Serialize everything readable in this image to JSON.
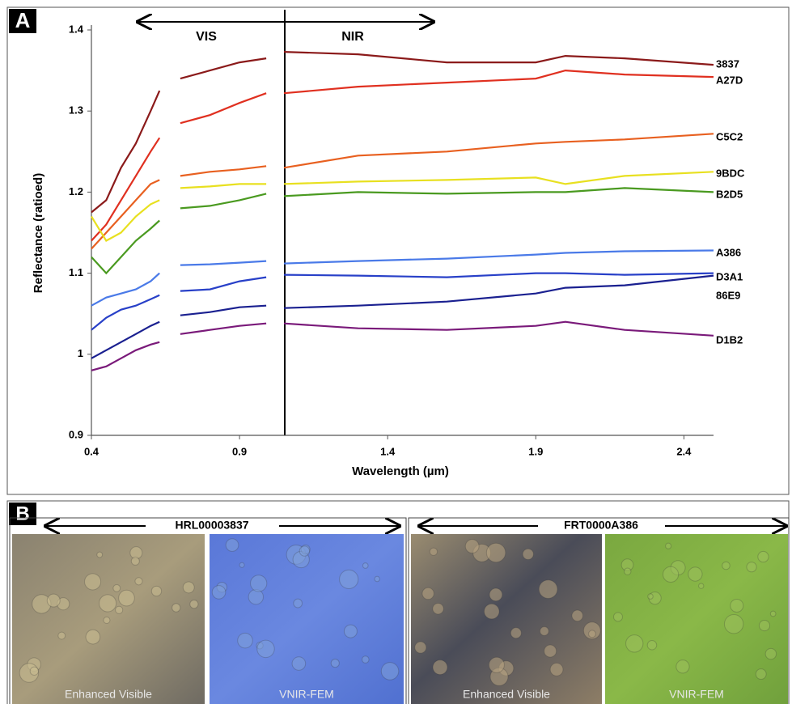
{
  "chart_data": {
    "type": "line",
    "panel_label": "A",
    "x_label": "Wavelength (µm)",
    "y_label": "Reflectance  (ratioed)",
    "annotations": [
      "VIS",
      "NIR"
    ],
    "x": [
      0.4,
      0.45,
      0.5,
      0.55,
      0.6,
      0.63,
      0.67,
      0.7,
      0.8,
      0.9,
      0.99,
      1.02,
      1.05,
      1.3,
      1.6,
      1.9,
      2.0,
      2.2,
      2.5
    ],
    "series": [
      {
        "name": "3837",
        "color": "#8b1a1a",
        "values": [
          1.175,
          1.19,
          1.23,
          1.26,
          1.3,
          1.325,
          null,
          1.34,
          1.35,
          1.36,
          1.365,
          null,
          1.373,
          1.37,
          1.36,
          1.36,
          1.368,
          1.365,
          1.357
        ]
      },
      {
        "name": "A27D",
        "color": "#e03020",
        "values": [
          1.14,
          1.16,
          1.19,
          1.22,
          1.25,
          1.267,
          null,
          1.285,
          1.295,
          1.31,
          1.322,
          null,
          1.322,
          1.33,
          1.335,
          1.34,
          1.35,
          1.345,
          1.342
        ]
      },
      {
        "name": "C5C2",
        "color": "#e86020",
        "values": [
          1.13,
          1.15,
          1.17,
          1.19,
          1.21,
          1.215,
          null,
          1.22,
          1.225,
          1.228,
          1.232,
          null,
          1.23,
          1.245,
          1.25,
          1.26,
          1.262,
          1.265,
          1.272
        ]
      },
      {
        "name": "9BDC",
        "color": "#e8e020",
        "values": [
          1.17,
          1.14,
          1.15,
          1.17,
          1.185,
          1.19,
          null,
          1.205,
          1.207,
          1.21,
          1.21,
          null,
          1.21,
          1.213,
          1.215,
          1.218,
          1.21,
          1.22,
          1.225
        ]
      },
      {
        "name": "B2D5",
        "color": "#4a9a20",
        "values": [
          1.12,
          1.1,
          1.12,
          1.14,
          1.155,
          1.165,
          null,
          1.18,
          1.183,
          1.19,
          1.198,
          null,
          1.195,
          1.2,
          1.198,
          1.2,
          1.2,
          1.205,
          1.2
        ]
      },
      {
        "name": "A386",
        "color": "#4a7ae8",
        "values": [
          1.06,
          1.07,
          1.075,
          1.08,
          1.09,
          1.1,
          null,
          1.11,
          1.111,
          1.113,
          1.115,
          null,
          1.112,
          1.115,
          1.118,
          1.123,
          1.125,
          1.127,
          1.128
        ]
      },
      {
        "name": "D3A1",
        "color": "#2840c8",
        "values": [
          1.03,
          1.045,
          1.055,
          1.06,
          1.068,
          1.073,
          null,
          1.078,
          1.08,
          1.09,
          1.095,
          null,
          1.098,
          1.097,
          1.095,
          1.1,
          1.1,
          1.098,
          1.1
        ]
      },
      {
        "name": "86E9",
        "color": "#1a2090",
        "values": [
          0.995,
          1.005,
          1.015,
          1.025,
          1.035,
          1.04,
          null,
          1.048,
          1.052,
          1.058,
          1.06,
          null,
          1.057,
          1.06,
          1.065,
          1.075,
          1.082,
          1.085,
          1.097
        ]
      },
      {
        "name": "D1B2",
        "color": "#7a1a7a",
        "values": [
          0.98,
          0.985,
          0.995,
          1.005,
          1.012,
          1.015,
          null,
          1.025,
          1.03,
          1.035,
          1.038,
          null,
          1.038,
          1.032,
          1.03,
          1.035,
          1.04,
          1.03,
          1.023
        ]
      }
    ],
    "xlim": [
      0.4,
      2.5
    ],
    "xticks": [
      0.4,
      0.9,
      1.4,
      1.9,
      2.4
    ],
    "ylim": [
      0.9,
      1.4
    ],
    "yticks": [
      0.9,
      1,
      1.1,
      1.2,
      1.3,
      1.4
    ],
    "grid": false
  },
  "panel_b": {
    "label": "B",
    "groups": [
      {
        "title": "HRL00003837",
        "images": [
          "Enhanced Visible",
          "VNIR-FEM"
        ]
      },
      {
        "title": "FRT0000A386",
        "images": [
          "Enhanced Visible",
          "VNIR-FEM"
        ]
      }
    ]
  }
}
